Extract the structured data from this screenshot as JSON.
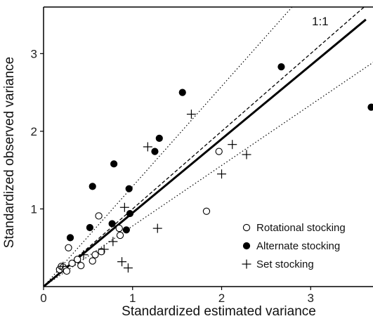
{
  "chart_data": {
    "type": "scatter",
    "xlabel": "Standardized estimated variance",
    "ylabel": "Standardized observed variance",
    "xlim": [
      0,
      3.7
    ],
    "ylim": [
      0,
      3.6
    ],
    "x_ticks": [
      0,
      1,
      2,
      3
    ],
    "y_ticks": [
      1,
      2,
      3
    ],
    "reference_line_label": "1:1",
    "grid": false,
    "legend_position": "bottom-right",
    "lines": [
      {
        "kind": "identity",
        "style": "dashed",
        "slope": 1,
        "intercept": 0
      },
      {
        "kind": "fit",
        "style": "solid",
        "slope": 0.95,
        "intercept": 0
      },
      {
        "kind": "upper-bound",
        "style": "dotted",
        "slope": 1.29,
        "intercept": 0
      },
      {
        "kind": "lower-bound",
        "style": "dotted",
        "slope": 0.78,
        "intercept": 0
      }
    ],
    "series": [
      {
        "name": "Rotational stocking",
        "marker": "open-circle",
        "points": [
          [
            0.18,
            0.22
          ],
          [
            0.2,
            0.26
          ],
          [
            0.22,
            0.25
          ],
          [
            0.24,
            0.22
          ],
          [
            0.26,
            0.2
          ],
          [
            0.28,
            0.5
          ],
          [
            0.32,
            0.3
          ],
          [
            0.38,
            0.35
          ],
          [
            0.42,
            0.27
          ],
          [
            0.55,
            0.33
          ],
          [
            0.58,
            0.41
          ],
          [
            0.62,
            0.91
          ],
          [
            0.65,
            0.45
          ],
          [
            0.85,
            0.75
          ],
          [
            0.86,
            0.66
          ],
          [
            1.83,
            0.97
          ],
          [
            1.97,
            1.74
          ]
        ]
      },
      {
        "name": "Alternate stocking",
        "marker": "filled-circle",
        "points": [
          [
            0.3,
            0.63
          ],
          [
            0.52,
            0.76
          ],
          [
            0.55,
            1.29
          ],
          [
            0.77,
            0.81
          ],
          [
            0.79,
            1.58
          ],
          [
            0.93,
            0.73
          ],
          [
            0.96,
            1.26
          ],
          [
            0.97,
            0.94
          ],
          [
            1.25,
            1.74
          ],
          [
            1.3,
            1.91
          ],
          [
            1.56,
            2.5
          ],
          [
            2.67,
            2.83
          ],
          [
            3.68,
            2.31
          ]
        ]
      },
      {
        "name": "Set stocking",
        "marker": "plus",
        "points": [
          [
            0.22,
            0.26
          ],
          [
            0.45,
            0.41
          ],
          [
            0.68,
            0.48
          ],
          [
            0.78,
            0.58
          ],
          [
            0.88,
            0.32
          ],
          [
            0.91,
            1.02
          ],
          [
            0.95,
            0.24
          ],
          [
            1.17,
            1.8
          ],
          [
            1.28,
            0.75
          ],
          [
            1.66,
            2.22
          ],
          [
            2.0,
            1.45
          ],
          [
            2.12,
            1.83
          ],
          [
            2.28,
            1.7
          ]
        ]
      }
    ]
  }
}
